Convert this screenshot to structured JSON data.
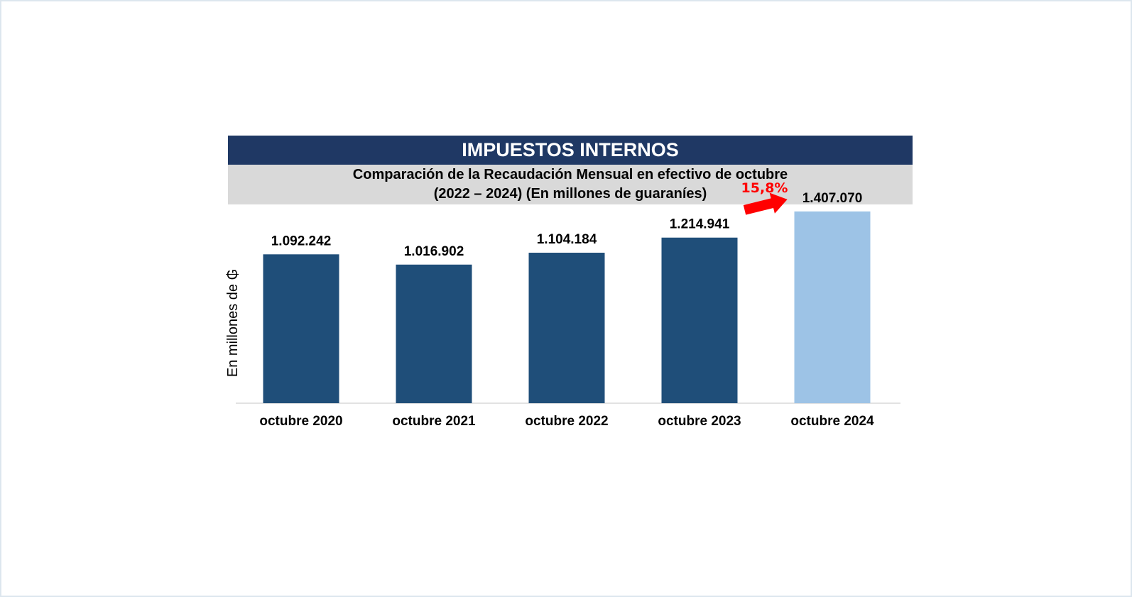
{
  "header": {
    "title": "IMPUESTOS INTERNOS",
    "subtitle_line1": "Comparación de la Recaudación Mensual en efectivo de octubre",
    "subtitle_line2": "(2022 – 2024) (En millones de guaraníes)"
  },
  "colors": {
    "header_bg": "#1f3864",
    "subheader_bg": "#d9d9d9",
    "bar_dark": "#1f4e79",
    "bar_light": "#9dc3e6",
    "growth_arrow": "#ff0000"
  },
  "chart_data": {
    "type": "bar",
    "title": "IMPUESTOS INTERNOS",
    "subtitle": "Comparación de la Recaudación Mensual en efectivo de octubre (2022 – 2024) (En millones de guaraníes)",
    "ylabel": "En millones de ₲",
    "xlabel": "",
    "categories": [
      "octubre 2020",
      "octubre 2021",
      "octubre 2022",
      "octubre 2023",
      "octubre 2024"
    ],
    "values": [
      1092242,
      1016902,
      1104184,
      1214941,
      1407070
    ],
    "value_labels": [
      "1.092.242",
      "1.016.902",
      "1.104.184",
      "1.214.941",
      "1.407.070"
    ],
    "bar_colors": [
      "#1f4e79",
      "#1f4e79",
      "#1f4e79",
      "#1f4e79",
      "#9dc3e6"
    ],
    "ylim": [
      0,
      1500000
    ],
    "grid": false,
    "legend": "none",
    "annotations": [
      {
        "text": "15,8%",
        "from_category": "octubre 2023",
        "to_category": "octubre 2024",
        "color": "#ff0000"
      }
    ]
  }
}
